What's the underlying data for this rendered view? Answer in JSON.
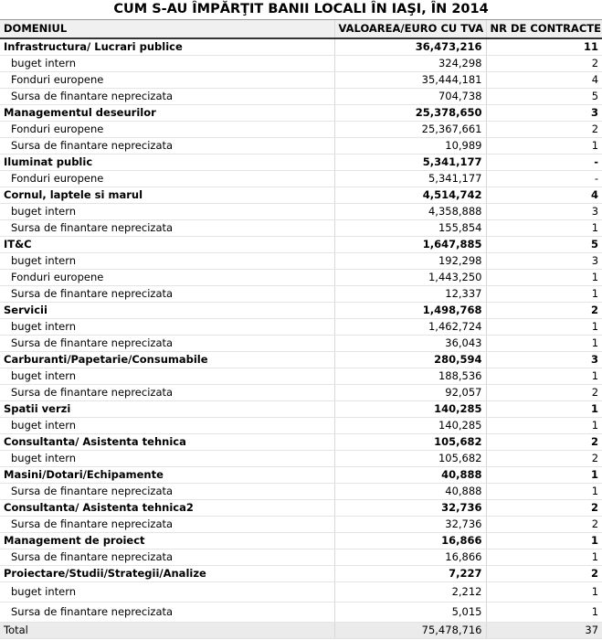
{
  "table": {
    "title": "CUM S-AU ÎMPĂRŢIT BANII LOCALI ÎN IAŞI, ÎN 2014",
    "header": [
      "DOMENIUL",
      "VALOAREA/EURO CU TVA",
      "NR DE CONTRACTE"
    ],
    "groups": [
      {
        "name": "Infrastructura/ Lucrari publice",
        "value": "36,473,216",
        "contracts": "11",
        "sources": [
          [
            "buget intern",
            "324,298",
            "2"
          ],
          [
            "Fonduri europene",
            "35,444,181",
            "4"
          ],
          [
            "Sursa de finantare neprecizata",
            "704,738",
            "5"
          ]
        ]
      },
      {
        "name": "Managementul deseurilor",
        "value": "25,378,650",
        "contracts": "3",
        "sources": [
          [
            "Fonduri europene",
            "25,367,661",
            "2"
          ],
          [
            "Sursa de finantare neprecizata",
            "10,989",
            "1"
          ]
        ]
      },
      {
        "name": "Iluminat public",
        "value": "5,341,177",
        "contracts": "-",
        "sources": [
          [
            "Fonduri europene",
            "5,341,177",
            "-"
          ]
        ]
      },
      {
        "name": "Cornul, laptele si marul",
        "value": "4,514,742",
        "contracts": "4",
        "sources": [
          [
            "buget intern",
            "4,358,888",
            "3"
          ],
          [
            "Sursa de finantare neprecizata",
            "155,854",
            "1"
          ]
        ]
      },
      {
        "name": "IT&C",
        "value": "1,647,885",
        "contracts": "5",
        "sources": [
          [
            "buget intern",
            "192,298",
            "3"
          ],
          [
            "Fonduri europene",
            "1,443,250",
            "1"
          ],
          [
            "Sursa de finantare neprecizata",
            "12,337",
            "1"
          ]
        ]
      },
      {
        "name": "Servicii",
        "value": "1,498,768",
        "contracts": "2",
        "sources": [
          [
            "buget intern",
            "1,462,724",
            "1"
          ],
          [
            "Sursa de finantare neprecizata",
            "36,043",
            "1"
          ]
        ]
      },
      {
        "name": "Carburanti/Papetarie/Consumabile",
        "value": "280,594",
        "contracts": "3",
        "sources": [
          [
            "buget intern",
            "188,536",
            "1"
          ],
          [
            "Sursa de finantare neprecizata",
            "92,057",
            "2"
          ]
        ]
      },
      {
        "name": "Spatii verzi",
        "value": "140,285",
        "contracts": "1",
        "sources": [
          [
            "buget intern",
            "140,285",
            "1"
          ]
        ]
      },
      {
        "name": "Consultanta/ Asistenta tehnica",
        "value": "105,682",
        "contracts": "2",
        "sources": [
          [
            "buget intern",
            "105,682",
            "2"
          ]
        ]
      },
      {
        "name": "Masini/Dotari/Echipamente",
        "value": "40,888",
        "contracts": "1",
        "sources": [
          [
            "Sursa de finantare neprecizata",
            "40,888",
            "1"
          ]
        ]
      },
      {
        "name": "Consultanta/ Asistenta tehnica2",
        "value": "32,736",
        "contracts": "2",
        "sources": [
          [
            "Sursa de finantare neprecizata",
            "32,736",
            "2"
          ]
        ]
      },
      {
        "name": "Management de proiect",
        "value": "16,866",
        "contracts": "1",
        "sources": [
          [
            "Sursa de finantare neprecizata",
            "16,866",
            "1"
          ]
        ]
      },
      {
        "name": "Proiectare/Studii/Strategii/Analize",
        "value": "7,227",
        "contracts": "2",
        "sources": [
          [
            "buget intern",
            "2,212",
            "1"
          ],
          [
            "Sursa de finantare neprecizata",
            "5,015",
            "1"
          ]
        ]
      }
    ],
    "total": [
      "Total",
      "75,478,716",
      "37"
    ]
  }
}
